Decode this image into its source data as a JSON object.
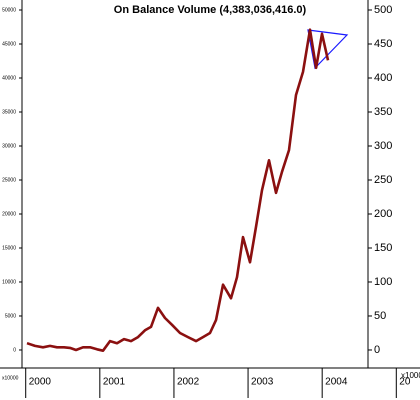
{
  "chart_data": {
    "type": "line",
    "title": "On Balance Volume (4,383,036,416.0)",
    "left_axis_unit": "x10000",
    "right_axis_unit": "x1000",
    "x": [
      2000.017,
      2000.125,
      2000.233,
      2000.328,
      2000.422,
      2000.517,
      2000.598,
      2000.679,
      2000.773,
      2000.867,
      2000.962,
      2001.043,
      2001.137,
      2001.232,
      2001.326,
      2001.421,
      2001.515,
      2001.61,
      2001.69,
      2001.785,
      2001.879,
      2001.974,
      2002.082,
      2002.19,
      2002.298,
      2002.392,
      2002.487,
      2002.567,
      2002.662,
      2002.77,
      2002.851,
      2002.932,
      2003.026,
      2003.107,
      2003.188,
      2003.283,
      2003.377,
      2003.458,
      2003.552,
      2003.647,
      2003.741,
      2003.836,
      2003.918,
      2003.998,
      2004.078
    ],
    "series": [
      {
        "name": "On Balance Volume",
        "color": "#8b1010",
        "axis": "y2",
        "values": [
          10,
          6,
          4,
          6,
          4,
          4,
          3,
          0,
          4,
          4,
          1,
          -1,
          13,
          10,
          16,
          13,
          19,
          29,
          34,
          62,
          47,
          37,
          25,
          19,
          13,
          19,
          25,
          44,
          96,
          76,
          107,
          166,
          129,
          181,
          235,
          279,
          231,
          262,
          294,
          375,
          409,
          471,
          415,
          465,
          426
        ]
      }
    ],
    "xlim": [
      1999.95,
      2005.05
    ],
    "xticks": [
      2000,
      2001,
      2002,
      2003,
      2004,
      {
        "value": 2005,
        "label": "20"
      }
    ],
    "ylim": [
      -2650,
      51470
    ],
    "yticks": [
      0,
      5000,
      10000,
      15000,
      20000,
      25000,
      30000,
      35000,
      40000,
      45000,
      50000
    ],
    "y2lim": [
      -26.5,
      514.7
    ],
    "y2ticks": [
      0,
      50,
      100,
      150,
      200,
      250,
      300,
      350,
      400,
      450,
      500
    ]
  }
}
